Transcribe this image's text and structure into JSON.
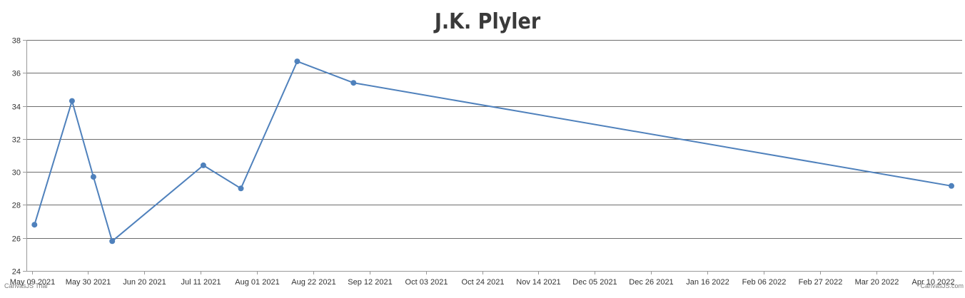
{
  "chart_data": {
    "type": "line",
    "title": "J.K. Plyler",
    "xlabel": "",
    "ylabel": "",
    "ylim": [
      24,
      38
    ],
    "yticks": [
      24,
      26,
      28,
      30,
      32,
      34,
      36,
      38
    ],
    "xlim": [
      "2021-05-07",
      "2022-04-21"
    ],
    "xtick_labels": [
      {
        "date": "2021-05-09",
        "label": "May 09 2021"
      },
      {
        "date": "2021-05-30",
        "label": "May 30 2021"
      },
      {
        "date": "2021-06-20",
        "label": "Jun 20 2021"
      },
      {
        "date": "2021-07-11",
        "label": "Jul 11 2021"
      },
      {
        "date": "2021-08-01",
        "label": "Aug 01 2021"
      },
      {
        "date": "2021-08-22",
        "label": "Aug 22 2021"
      },
      {
        "date": "2021-09-12",
        "label": "Sep 12 2021"
      },
      {
        "date": "2021-10-03",
        "label": "Oct 03 2021"
      },
      {
        "date": "2021-10-24",
        "label": "Oct 24 2021"
      },
      {
        "date": "2021-11-14",
        "label": "Nov 14 2021"
      },
      {
        "date": "2021-12-05",
        "label": "Dec 05 2021"
      },
      {
        "date": "2021-12-26",
        "label": "Dec 26 2021"
      },
      {
        "date": "2022-01-16",
        "label": "Jan 16 2022"
      },
      {
        "date": "2022-02-06",
        "label": "Feb 06 2022"
      },
      {
        "date": "2022-02-27",
        "label": "Feb 27 2022"
      },
      {
        "date": "2022-03-20",
        "label": "Mar 20 2022"
      },
      {
        "date": "2022-04-10",
        "label": "Apr 10 2022"
      }
    ],
    "grid": true,
    "series": [
      {
        "color": "#4f81bc",
        "points": [
          {
            "x": "2021-05-10",
            "y": 26.8
          },
          {
            "x": "2021-05-24",
            "y": 34.3
          },
          {
            "x": "2021-06-01",
            "y": 29.7
          },
          {
            "x": "2021-06-08",
            "y": 25.8
          },
          {
            "x": "2021-07-12",
            "y": 30.4
          },
          {
            "x": "2021-07-26",
            "y": 29.0
          },
          {
            "x": "2021-08-16",
            "y": 36.7
          },
          {
            "x": "2021-09-06",
            "y": 35.4
          },
          {
            "x": "2022-04-17",
            "y": 29.15
          }
        ]
      }
    ]
  },
  "credits": {
    "left": "CanvasJS Trial",
    "right": "CanvasJS.com"
  }
}
